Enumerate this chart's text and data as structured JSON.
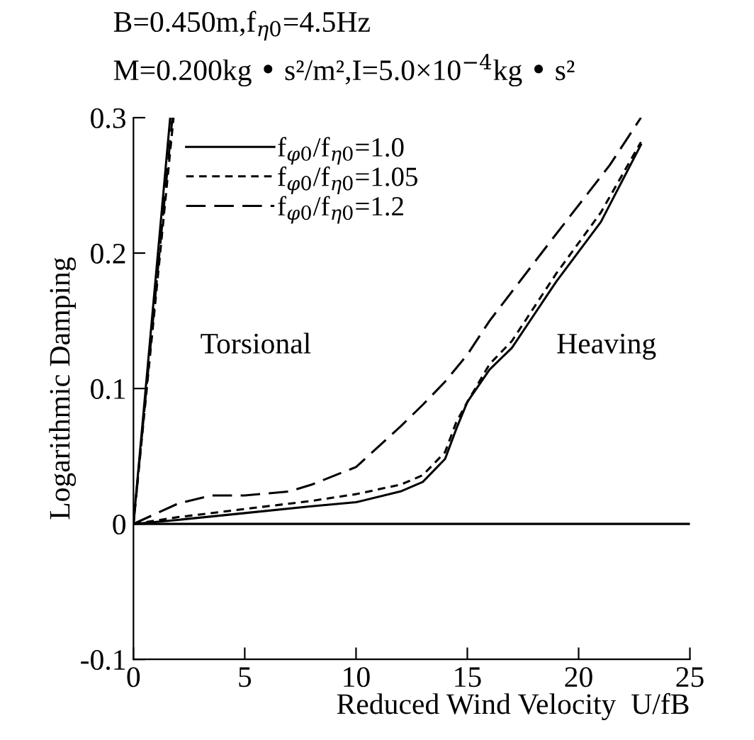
{
  "chart_data": {
    "type": "line",
    "title": "B=0.450m,f$_{η0}$=4.5Hz",
    "subtitle": "M=0.200kg • s²/m²,I=5.0×10$^{−4}$kg • s²",
    "xlabel": "Reduced Wind Velocity  U/fB",
    "ylabel": "Logarithmic Damping",
    "annotations": [
      "Torsional",
      "Heaving"
    ],
    "xlim": [
      0,
      25
    ],
    "xticks": [
      0,
      5,
      10,
      15,
      20,
      25
    ],
    "ylim": [
      -0.1,
      0.3
    ],
    "yticks": [
      -0.1,
      0,
      0.1,
      0.2,
      0.3
    ],
    "grid": false,
    "legend": "top left",
    "marker": "none",
    "ref_lines": [
      {
        "axis": "y",
        "value": 0,
        "label": null,
        "color": "#000000"
      }
    ],
    "series": [
      {
        "name": "f$_{φ0}$/f$_{η0}$=1.0",
        "color": "#000000",
        "line_style": "solid",
        "x": [
          0,
          2,
          5,
          8,
          10,
          12,
          13,
          14,
          14.5,
          15,
          16,
          17,
          19,
          21,
          22.8
        ],
        "values": [
          0,
          0.003,
          0.008,
          0.013,
          0.016,
          0.024,
          0.031,
          0.048,
          0.07,
          0.09,
          0.114,
          0.13,
          0.179,
          0.223,
          0.28
        ]
      },
      {
        "name": "f$_{φ0}$/f$_{η0}$=1.05",
        "color": "#000000",
        "line_style": "dotted",
        "x": [
          0,
          2,
          5,
          8,
          10,
          12,
          13,
          14,
          14.5,
          15,
          16,
          17,
          19,
          21,
          22.8
        ],
        "values": [
          0,
          0.005,
          0.011,
          0.017,
          0.022,
          0.029,
          0.036,
          0.053,
          0.075,
          0.09,
          0.118,
          0.135,
          0.185,
          0.23,
          0.282
        ]
      },
      {
        "name": "f$_{φ0}$/f$_{η0}$=1.2",
        "color": "#000000",
        "line_style": "dashed",
        "x": [
          0,
          2,
          3.5,
          5,
          7,
          8,
          10,
          12,
          13,
          14,
          15,
          16,
          18.8,
          21.4,
          22.8
        ],
        "values": [
          0,
          0.015,
          0.021,
          0.021,
          0.024,
          0.029,
          0.042,
          0.072,
          0.088,
          0.105,
          0.125,
          0.15,
          0.21,
          0.265,
          0.3
        ]
      },
      {
        "color": "#000000",
        "line_style": "solid",
        "x": [
          0,
          1.65
        ],
        "values": [
          0,
          0.3
        ]
      },
      {
        "color": "#000000",
        "line_style": "dotted",
        "x": [
          0,
          1.8
        ],
        "values": [
          0,
          0.3
        ]
      },
      {
        "color": "#000000",
        "line_style": "dashed",
        "x": [
          0,
          1.75
        ],
        "values": [
          0,
          0.3
        ]
      }
    ]
  }
}
